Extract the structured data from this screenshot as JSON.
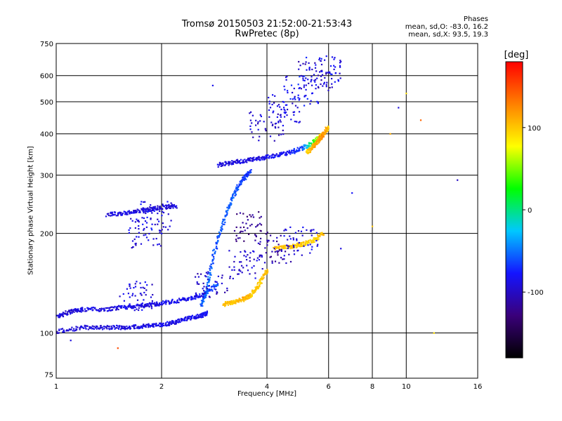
{
  "chart_data": {
    "type": "scatter",
    "title": "Tromsø 20150503 21:52:00-21:53:43",
    "subtitle": "RwPretec (8p)",
    "xlabel": "Frequency [MHz]",
    "ylabel": "Stationary phase Virtual Height [km]",
    "x_scale": "log",
    "y_scale": "log",
    "xlim": [
      1,
      16
    ],
    "ylim": [
      73,
      750
    ],
    "x_ticks": [
      1,
      2,
      4,
      6,
      8,
      10,
      16
    ],
    "x_tick_labels": [
      "1",
      "2",
      "4",
      "6",
      "8",
      "10",
      "16"
    ],
    "y_ticks": [
      75,
      100,
      200,
      300,
      400,
      500,
      600,
      750
    ],
    "y_tick_labels": [
      "75",
      "100",
      "200",
      "300",
      "400",
      "500",
      "600",
      "750"
    ],
    "grid": true,
    "colorbar": {
      "label": "[deg]",
      "range": [
        -180,
        180
      ],
      "ticks": [
        -100,
        0,
        100
      ],
      "tick_labels": [
        "-100",
        "0",
        "100"
      ],
      "colors": [
        "#000000",
        "#3a007a",
        "#1414ff",
        "#00c8ff",
        "#00ff00",
        "#ffff00",
        "#ff8000",
        "#ff0000"
      ]
    },
    "stats": {
      "heading": "Phases",
      "line_o": "mean, sd,O: -83.0, 16.2",
      "line_x": "mean, sd,X:  93.5, 19.3"
    },
    "series": [
      {
        "kind": "trace",
        "x": [
          1.0,
          1.1,
          1.2,
          1.4,
          1.6,
          1.8,
          2.0,
          2.3,
          2.6,
          2.9
        ],
        "y": [
          112,
          116,
          118,
          118,
          120,
          121,
          123,
          126,
          130,
          140
        ],
        "phase": [
          -90,
          -95,
          -88,
          -92,
          -85,
          -90,
          -87,
          -83,
          -80,
          -60
        ]
      },
      {
        "kind": "trace",
        "x": [
          1.0,
          1.2,
          1.4,
          1.6,
          1.8,
          2.0,
          2.2,
          2.4,
          2.6,
          2.7
        ],
        "y": [
          101,
          104,
          104,
          104,
          105,
          106,
          108,
          111,
          113,
          115
        ],
        "phase": [
          -95,
          -90,
          -93,
          -88,
          -90,
          -86,
          -88,
          -84,
          -85,
          -80
        ]
      },
      {
        "kind": "trace",
        "x": [
          2.6,
          2.7,
          2.8,
          3.0,
          3.2,
          3.4,
          3.6
        ],
        "y": [
          122,
          135,
          170,
          215,
          260,
          290,
          310
        ],
        "phase": [
          -60,
          -50,
          -62,
          -55,
          -58,
          -65,
          -70
        ]
      },
      {
        "kind": "trace",
        "x": [
          1.4,
          1.6,
          1.8,
          2.0,
          2.2
        ],
        "y": [
          228,
          231,
          236,
          240,
          242
        ],
        "phase": [
          -90,
          -88,
          -92,
          -95,
          -90
        ]
      },
      {
        "kind": "trace",
        "x": [
          2.9,
          3.2,
          3.6,
          4.0,
          4.5,
          5.0,
          5.5,
          5.8
        ],
        "y": [
          322,
          328,
          334,
          340,
          348,
          360,
          380,
          400
        ],
        "phase": [
          -88,
          -92,
          -90,
          -85,
          -80,
          -70,
          40,
          95
        ]
      },
      {
        "kind": "trace",
        "x": [
          5.2,
          5.4,
          5.6,
          5.8,
          6.0
        ],
        "y": [
          350,
          365,
          380,
          400,
          420
        ],
        "phase": [
          90,
          110,
          115,
          120,
          100
        ]
      },
      {
        "kind": "trace",
        "x": [
          3.0,
          3.2,
          3.4,
          3.6,
          3.8,
          4.0
        ],
        "y": [
          122,
          124,
          126,
          130,
          140,
          155
        ],
        "phase": [
          105,
          100,
          110,
          100,
          95,
          105
        ]
      },
      {
        "kind": "trace",
        "x": [
          4.2,
          4.6,
          5.0,
          5.4,
          5.8
        ],
        "y": [
          180,
          182,
          185,
          190,
          200
        ],
        "phase": [
          105,
          100,
          100,
          95,
          105
        ]
      },
      {
        "kind": "cloud",
        "x": [
          2.8,
          3.5,
          4.2,
          5.0,
          3.6
        ],
        "y": [
          140,
          160,
          180,
          190,
          210
        ],
        "phase": [
          -100,
          -95,
          -110,
          -90,
          -120
        ]
      },
      {
        "kind": "cloud",
        "x": [
          1.7,
          1.8,
          1.9
        ],
        "y": [
          130,
          200,
          225
        ],
        "phase": [
          -90,
          -92,
          -85
        ]
      },
      {
        "kind": "cloud",
        "x": [
          4.0,
          4.5,
          5.0,
          5.5,
          5.8
        ],
        "y": [
          420,
          480,
          540,
          600,
          620
        ],
        "phase": [
          -95,
          -90,
          -80,
          -100,
          -85
        ]
      },
      {
        "kind": "sparse",
        "x": [
          1.1,
          1.5,
          2.8,
          6.5,
          7.0,
          8.0,
          9.0,
          9.5,
          10.0,
          11.0,
          12.0,
          14.0
        ],
        "y": [
          95,
          90,
          560,
          180,
          265,
          210,
          400,
          480,
          530,
          440,
          100,
          290
        ],
        "phase": [
          -90,
          150,
          -85,
          -90,
          -80,
          100,
          110,
          -90,
          90,
          140,
          90,
          -100
        ]
      }
    ]
  }
}
